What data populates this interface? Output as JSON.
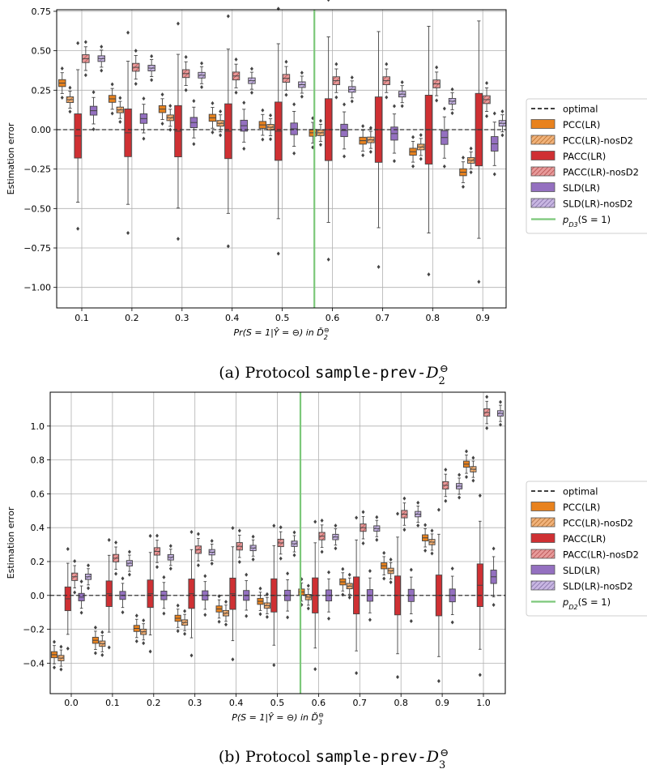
{
  "chart_data": [
    {
      "type": "boxplot",
      "caption_prefix": "(a) Protocol ",
      "caption_code": "sample-prev-",
      "caption_math": "D",
      "caption_sub": "2",
      "caption_sup": "⊖",
      "ylabel": "Estimation error",
      "xlabel": "Pr(S = 1|Ŷ = ⊖) in Ď",
      "xlabel_sub": "2",
      "xlabel_sup": "⊖",
      "ylim": [
        -1.13,
        0.76
      ],
      "yticks": [
        0.75,
        0.5,
        0.25,
        0.0,
        -0.25,
        -0.5,
        -0.75,
        -1.0
      ],
      "ytick_labels": [
        "0.75",
        "0.50",
        "0.25",
        "0.00",
        "−0.25",
        "−0.50",
        "−0.75",
        "−1.00"
      ],
      "categories": [
        "0.1",
        "0.2",
        "0.3",
        "0.4",
        "0.5",
        "0.6",
        "0.7",
        "0.8",
        "0.9"
      ],
      "grid": true,
      "optimal_line": 0.0,
      "true_prevalence_x": 0.564,
      "legend_position": "outside-right",
      "series": [
        {
          "name": "PCC(LR)",
          "values": [
            0.295,
            0.195,
            0.13,
            0.075,
            0.03,
            -0.02,
            -0.07,
            -0.14,
            -0.27
          ]
        },
        {
          "name": "PCC(LR)-nosD2",
          "values": [
            0.19,
            0.125,
            0.075,
            0.04,
            0.015,
            -0.02,
            -0.065,
            -0.11,
            -0.195
          ]
        },
        {
          "name": "PACC(LR)",
          "values": [
            -0.04,
            -0.02,
            -0.01,
            -0.01,
            -0.01,
            0.0,
            0.0,
            0.0,
            0.0
          ]
        },
        {
          "name": "PACC(LR)-nosD2",
          "values": [
            0.45,
            0.395,
            0.355,
            0.34,
            0.325,
            0.31,
            0.31,
            0.29,
            0.19
          ]
        },
        {
          "name": "SLD(LR)",
          "values": [
            0.12,
            0.07,
            0.045,
            0.025,
            0.005,
            -0.005,
            -0.025,
            -0.05,
            -0.09
          ]
        },
        {
          "name": "SLD(LR)-nosD2",
          "values": [
            0.45,
            0.39,
            0.345,
            0.31,
            0.285,
            0.255,
            0.225,
            0.18,
            0.04
          ]
        }
      ]
    },
    {
      "type": "boxplot",
      "caption_prefix": "(b) Protocol ",
      "caption_code": "sample-prev-",
      "caption_math": "D",
      "caption_sub": "3",
      "caption_sup": "⊖",
      "ylabel": "Estimation error",
      "xlabel": "P(S = 1|Ŷ = ⊖) in Ď",
      "xlabel_sub": "3",
      "xlabel_sup": "⊖",
      "ylim": [
        -0.58,
        1.2
      ],
      "yticks": [
        1.0,
        0.8,
        0.6,
        0.4,
        0.2,
        0.0,
        -0.2,
        -0.4
      ],
      "ytick_labels": [
        "1.0",
        "0.8",
        "0.6",
        "0.4",
        "0.2",
        "0.0",
        "−0.2",
        "−0.4"
      ],
      "categories": [
        "0.0",
        "0.1",
        "0.2",
        "0.3",
        "0.4",
        "0.5",
        "0.6",
        "0.7",
        "0.8",
        "0.9",
        "1.0"
      ],
      "grid": true,
      "optimal_line": 0.0,
      "true_prevalence_x": 0.556,
      "legend_position": "outside-right",
      "series": [
        {
          "name": "PCC(LR)",
          "values": [
            -0.35,
            -0.265,
            -0.195,
            -0.135,
            -0.08,
            -0.035,
            0.02,
            0.08,
            0.175,
            0.34,
            0.775
          ]
        },
        {
          "name": "PCC(LR)-nosD2",
          "values": [
            -0.37,
            -0.285,
            -0.215,
            -0.16,
            -0.105,
            -0.06,
            -0.01,
            0.055,
            0.145,
            0.315,
            0.745
          ]
        },
        {
          "name": "PACC(LR)",
          "values": [
            -0.02,
            0.01,
            0.01,
            0.01,
            0.01,
            0.0,
            0.0,
            0.0,
            0.0,
            0.0,
            0.06
          ]
        },
        {
          "name": "PACC(LR)-nosD2",
          "values": [
            0.11,
            0.22,
            0.26,
            0.27,
            0.29,
            0.31,
            0.35,
            0.4,
            0.48,
            0.65,
            1.08
          ]
        },
        {
          "name": "SLD(LR)",
          "values": [
            -0.01,
            0.0,
            0.0,
            0.0,
            0.0,
            0.0,
            0.0,
            0.0,
            0.0,
            0.0,
            0.11
          ]
        },
        {
          "name": "SLD(LR)-nosD2",
          "values": [
            0.11,
            0.19,
            0.225,
            0.255,
            0.28,
            0.305,
            0.345,
            0.395,
            0.48,
            0.645,
            1.075
          ]
        }
      ]
    }
  ],
  "legend": {
    "items": [
      {
        "label": "optimal",
        "kind": "dash"
      },
      {
        "label": "PCC(LR)",
        "kind": "box",
        "color": "#e8821e",
        "hatch": false
      },
      {
        "label": "PCC(LR)-nosD2",
        "kind": "box",
        "color": "#f0b27a",
        "hatch": true
      },
      {
        "label": "PACC(LR)",
        "kind": "box",
        "color": "#cf3033",
        "hatch": false
      },
      {
        "label": "PACC(LR)-nosD2",
        "kind": "box",
        "color": "#e79a9a",
        "hatch": true
      },
      {
        "label": "SLD(LR)",
        "kind": "box",
        "color": "#9470c0",
        "hatch": false
      },
      {
        "label": "SLD(LR)-nosD2",
        "kind": "box",
        "color": "#c8b6e2",
        "hatch": true
      },
      {
        "label": "p",
        "kind": "line",
        "color": "#7cc87a",
        "suffix": "(S = 1)"
      }
    ],
    "legend_sub": [
      "D",
      "3",
      "2"
    ]
  },
  "colors": {
    "pcc": "#e8821e",
    "pcc_nos": "#f0b27a",
    "pacc": "#cf3033",
    "pacc_nos": "#e79a9a",
    "sld": "#9470c0",
    "sld_nos": "#c8b6e2",
    "prevalence_line": "#7cc87a",
    "grid": "#b0b0b0"
  }
}
